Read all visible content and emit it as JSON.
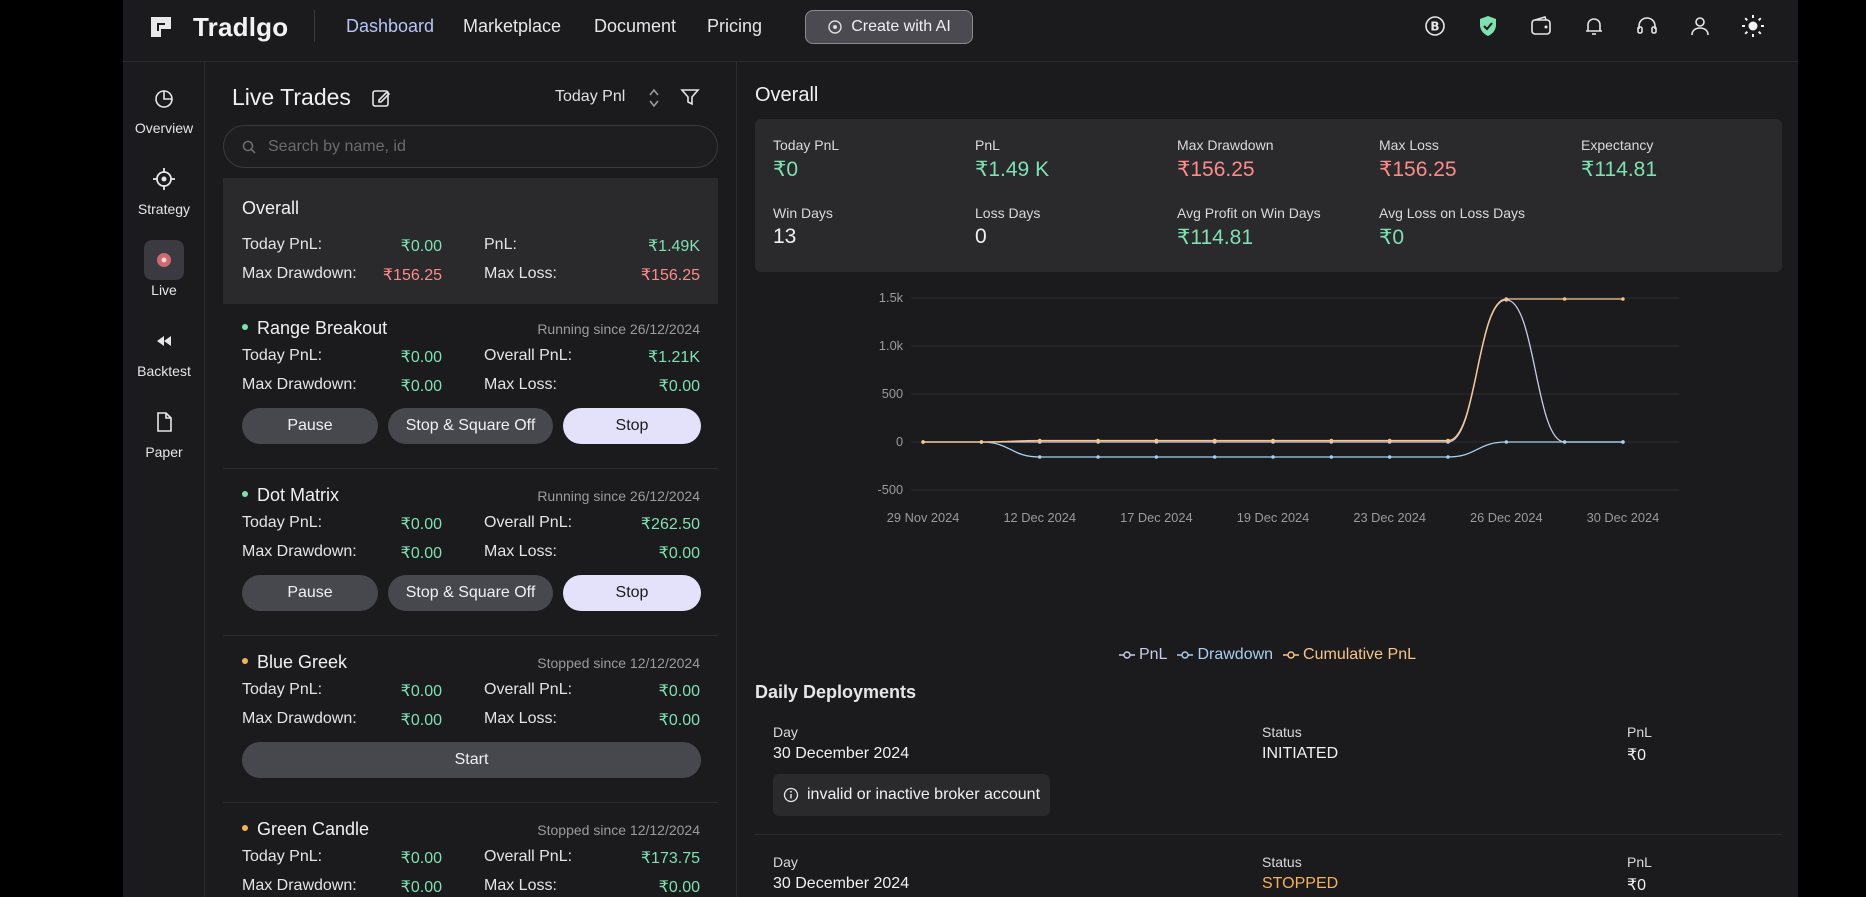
{
  "brand": {
    "name": "Tradlgo"
  },
  "nav": {
    "links": [
      "Dashboard",
      "Marketplace",
      "Document",
      "Pricing"
    ],
    "ai_button": "Create with AI"
  },
  "top_icons": [
    "broker-b-icon",
    "shield-check-icon",
    "wallet-icon",
    "bell-icon",
    "headset-icon",
    "user-icon",
    "sun-icon"
  ],
  "rail": {
    "items": [
      {
        "label": "Overview",
        "icon": "pie-chart-icon"
      },
      {
        "label": "Strategy",
        "icon": "crosshair-icon"
      },
      {
        "label": "Live",
        "icon": "live-record-icon"
      },
      {
        "label": "Backtest",
        "icon": "rewind-icon"
      },
      {
        "label": "Paper",
        "icon": "document-icon"
      }
    ]
  },
  "trades": {
    "title": "Live Trades",
    "sort_label": "Today Pnl",
    "search_placeholder": "Search by name, id",
    "overall": {
      "name": "Overall",
      "today_pnl_label": "Today PnL:",
      "today_pnl": "₹0.00",
      "pnl_label": "PnL:",
      "pnl": "₹1.49K",
      "max_dd_label": "Max Drawdown:",
      "max_dd": "₹156.25",
      "max_loss_label": "Max Loss:",
      "max_loss": "₹156.25"
    },
    "strategies": [
      {
        "name": "Range Breakout",
        "status": "Running since 26/12/2024",
        "dot": "#7fe0b2",
        "today_pnl_label": "Today PnL:",
        "today_pnl": "₹0.00",
        "overall_pnl_label": "Overall PnL:",
        "overall_pnl": "₹1.21K",
        "max_dd_label": "Max Drawdown:",
        "max_dd": "₹0.00",
        "max_loss_label": "Max Loss:",
        "max_loss": "₹0.00",
        "buttons": [
          "Pause",
          "Stop & Square Off",
          "Stop"
        ]
      },
      {
        "name": "Dot Matrix",
        "status": "Running since 26/12/2024",
        "dot": "#7fe0b2",
        "today_pnl_label": "Today PnL:",
        "today_pnl": "₹0.00",
        "overall_pnl_label": "Overall PnL:",
        "overall_pnl": "₹262.50",
        "max_dd_label": "Max Drawdown:",
        "max_dd": "₹0.00",
        "max_loss_label": "Max Loss:",
        "max_loss": "₹0.00",
        "buttons": [
          "Pause",
          "Stop & Square Off",
          "Stop"
        ]
      },
      {
        "name": "Blue Greek",
        "status": "Stopped since 12/12/2024",
        "dot": "#f5b25a",
        "today_pnl_label": "Today PnL:",
        "today_pnl": "₹0.00",
        "overall_pnl_label": "Overall PnL:",
        "overall_pnl": "₹0.00",
        "max_dd_label": "Max Drawdown:",
        "max_dd": "₹0.00",
        "max_loss_label": "Max Loss:",
        "max_loss": "₹0.00",
        "buttons": [
          "Start"
        ]
      },
      {
        "name": "Green Candle",
        "status": "Stopped since 12/12/2024",
        "dot": "#f5b25a",
        "today_pnl_label": "Today PnL:",
        "today_pnl": "₹0.00",
        "overall_pnl_label": "Overall PnL:",
        "overall_pnl": "₹173.75",
        "max_dd_label": "Max Drawdown:",
        "max_dd": "₹0.00",
        "max_loss_label": "Max Loss:",
        "max_loss": "₹0.00",
        "buttons": []
      }
    ]
  },
  "overall": {
    "title": "Overall",
    "stats": [
      {
        "label": "Today PnL",
        "value": "₹0",
        "tone": "pos"
      },
      {
        "label": "PnL",
        "value": "₹1.49 K",
        "tone": "pos"
      },
      {
        "label": "Max Drawdown",
        "value": "₹156.25",
        "tone": "neg"
      },
      {
        "label": "Max Loss",
        "value": "₹156.25",
        "tone": "neg"
      },
      {
        "label": "Expectancy",
        "value": "₹114.81",
        "tone": "pos"
      },
      {
        "label": "Win Days",
        "value": "13",
        "tone": "plain"
      },
      {
        "label": "Loss Days",
        "value": "0",
        "tone": "plain"
      },
      {
        "label": "Avg Profit on Win Days",
        "value": "₹114.81",
        "tone": "pos"
      },
      {
        "label": "Avg Loss on Loss Days",
        "value": "₹0",
        "tone": "pos"
      }
    ]
  },
  "chart_data": {
    "type": "line",
    "x_tick_labels": [
      "29 Nov 2024",
      "12 Dec 2024",
      "17 Dec 2024",
      "19 Dec 2024",
      "23 Dec 2024",
      "26 Dec 2024",
      "30 Dec 2024"
    ],
    "y_tick_labels": [
      "1.5k",
      "1.0k",
      "500",
      "0",
      "-500"
    ],
    "ylim": [
      -500,
      1500
    ],
    "grid": true,
    "legend_position": "bottom",
    "points": 13,
    "series": [
      {
        "name": "PnL",
        "color": "#c9cde8",
        "values": [
          0,
          0,
          0,
          0,
          0,
          0,
          0,
          0,
          0,
          0,
          1480,
          0,
          0
        ]
      },
      {
        "name": "Drawdown",
        "color": "#a9cfee",
        "values": [
          0,
          0,
          -156,
          -156,
          -156,
          -156,
          -156,
          -156,
          -156,
          -156,
          0,
          0,
          0
        ]
      },
      {
        "name": "Cumulative PnL",
        "color": "#f7c48a",
        "values": [
          0,
          0,
          15,
          15,
          15,
          15,
          15,
          15,
          15,
          15,
          1490,
          1490,
          1490
        ]
      }
    ]
  },
  "deployments": {
    "title": "Daily Deployments",
    "rows": [
      {
        "day_label": "Day",
        "day": "30 December 2024",
        "status_label": "Status",
        "status": "INITIATED",
        "status_color": "#f0f0f2",
        "pnl_label": "PnL",
        "pnl": "₹0",
        "message": "invalid or inactive broker account"
      },
      {
        "day_label": "Day",
        "day": "30 December 2024",
        "status_label": "Status",
        "status": "STOPPED",
        "status_color": "#f5b25a",
        "pnl_label": "PnL",
        "pnl": "₹0"
      }
    ]
  }
}
